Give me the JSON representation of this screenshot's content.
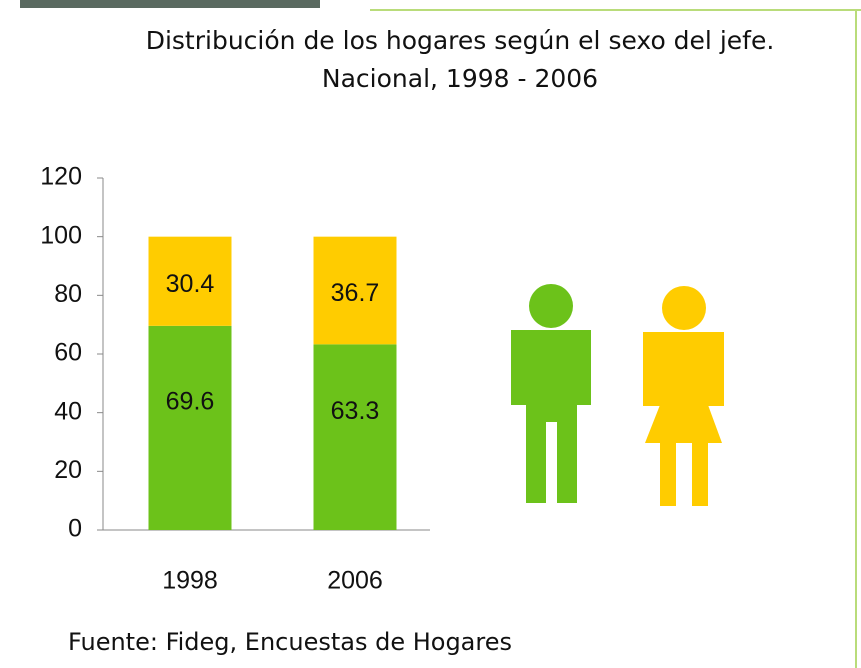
{
  "chart_data": {
    "type": "stacked_bar",
    "title": "Distribución de los hogares según el sexo del jefe.",
    "subtitle": "Nacional, 1998 - 2006",
    "categories": [
      "1998",
      "2006"
    ],
    "series": [
      {
        "color": "#6cc21a",
        "values": [
          69.6,
          63.3
        ]
      },
      {
        "color": "#ffcc00",
        "values": [
          30.4,
          36.7
        ]
      }
    ],
    "ylim": [
      0,
      120
    ],
    "yticks": [
      0,
      20,
      40,
      60,
      80,
      100,
      120
    ],
    "source": "Fuente: Fideg, Encuestas de Hogares"
  }
}
